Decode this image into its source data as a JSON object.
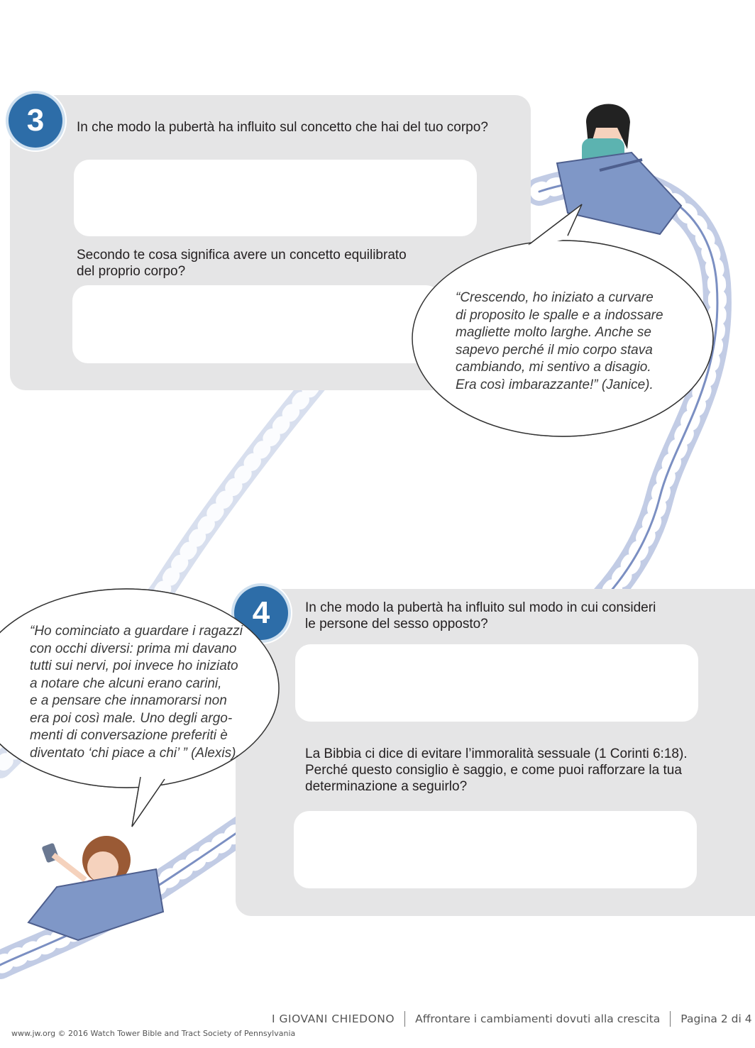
{
  "section3": {
    "number": "3",
    "question1": "In che modo la pubertà ha influito sul concetto che hai del tuo corpo?",
    "question2": "Secondo te cosa significa avere un concetto equilibrato\ndel proprio corpo?",
    "quote": "“Crescendo, ho iniziato a curvare\n  di proposito le spalle e a indossare\n  magliette molto larghe. Anche se\n  sapevo perché il mio corpo stava\n  cambiando, mi sentivo a disagio.\n  Era così imbarazzante!” (Janice)."
  },
  "section4": {
    "number": "4",
    "question1": "In che modo la pubertà ha influito sul modo in cui consideri\nle persone del sesso opposto?",
    "question2": "La Bibbia ci dice di evitare l’immoralità sessuale (1 Corinti 6:18).\nPerché questo consiglio è saggio, e come puoi rafforzare la tua\ndeterminazione a seguirlo?",
    "quote": "“Ho cominciato a guardare i ragazzi\n  con occhi diversi: prima mi davano\n  tutti sui nervi, poi invece ho iniziato\n  a notare che alcuni erano carini,\n  e a pensare che innamorarsi non\n  era poi così male. Uno degli argo-\n  menti di conversazione preferiti è\n  diventato ‘chi piace a chi’ ” (Alexis)."
  },
  "footer": {
    "series": "I GIOVANI CHIEDONO",
    "topic": "Affrontare i cambiamenti dovuti alla crescita",
    "page": "Pagina 2 di 4",
    "copyright": "www.jw.org © 2016 Watch Tower Bible and Tract Society of Pennsylvania"
  },
  "colors": {
    "badge": "#2d6da8",
    "panel": "#e5e5e6",
    "track": "#8fa3cf"
  }
}
